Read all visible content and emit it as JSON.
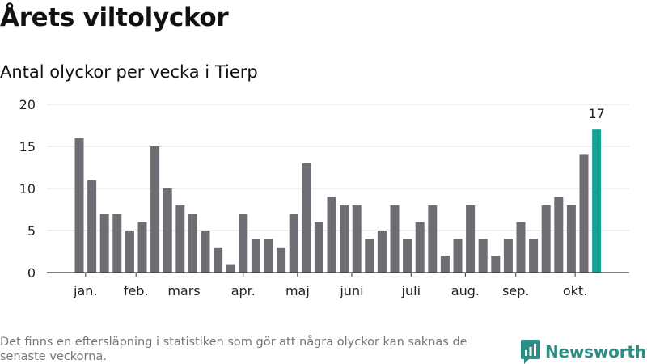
{
  "title": "Årets viltolyckor",
  "subtitle": "Antal olyckor per vecka i Tierp",
  "footnote": "Det finns en eftersläpning i statistiken som gör att några olyckor kan saknas de senaste veckorna.",
  "logo": {
    "text": "Newsworthy",
    "color": "#2d8c85",
    "icon": "chart-speech-bubble-icon"
  },
  "colors": {
    "bar": "#6e6d73",
    "highlight": "#16a096",
    "grid": "#dddddd",
    "axis": "#333333"
  },
  "chart_data": {
    "type": "bar",
    "title": "Årets viltolyckor",
    "subtitle": "Antal olyckor per vecka i Tierp",
    "xlabel": "",
    "ylabel": "",
    "ylim": [
      0,
      20
    ],
    "yticks": [
      0,
      5,
      10,
      15,
      20
    ],
    "grid": true,
    "values": [
      16,
      11,
      7,
      7,
      5,
      6,
      15,
      10,
      8,
      7,
      5,
      3,
      1,
      7,
      4,
      4,
      3,
      7,
      13,
      6,
      9,
      8,
      8,
      4,
      5,
      8,
      4,
      6,
      8,
      2,
      4,
      8,
      4,
      2,
      4,
      6,
      4,
      8,
      9,
      8,
      14,
      17
    ],
    "highlight_index": 41,
    "highlight_label": "17",
    "month_ticks": [
      {
        "label": "jan.",
        "index": 0.5
      },
      {
        "label": "feb.",
        "index": 4.5
      },
      {
        "label": "mars",
        "index": 8.3
      },
      {
        "label": "apr.",
        "index": 13.0
      },
      {
        "label": "maj",
        "index": 17.3
      },
      {
        "label": "juni",
        "index": 21.6
      },
      {
        "label": "juli",
        "index": 26.3
      },
      {
        "label": "aug.",
        "index": 30.6
      },
      {
        "label": "sep.",
        "index": 34.6
      },
      {
        "label": "okt.",
        "index": 39.3
      }
    ]
  }
}
